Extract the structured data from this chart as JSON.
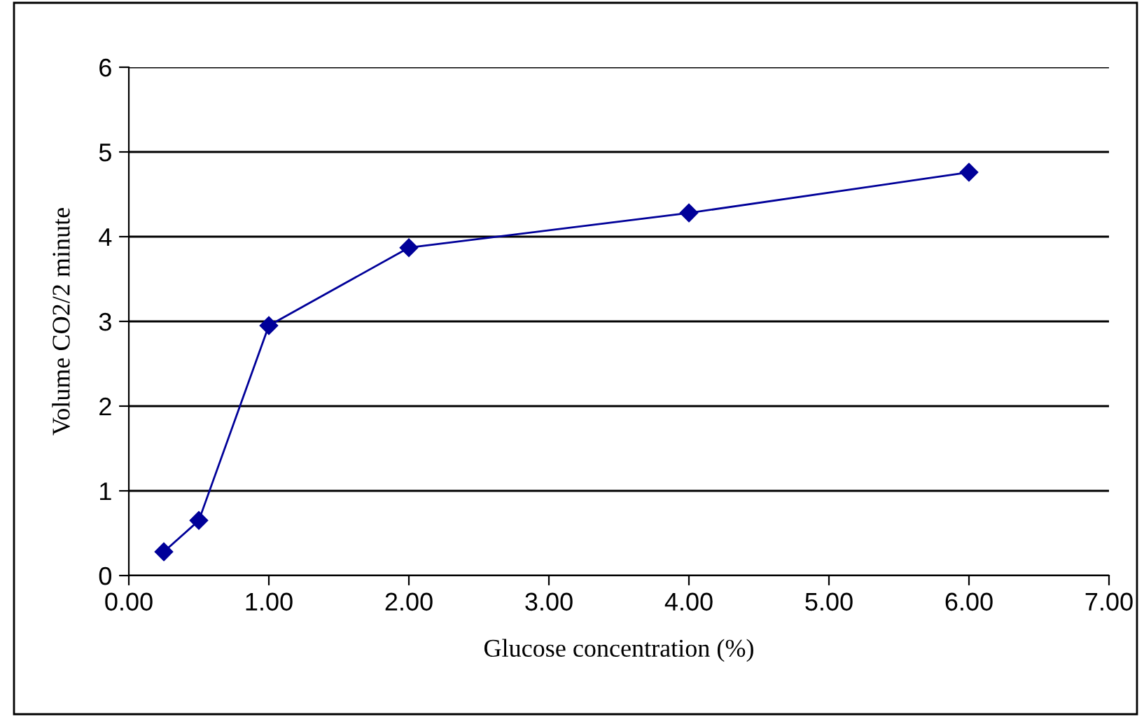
{
  "chart_data": {
    "type": "line",
    "xlabel": "Glucose concentration (%)",
    "ylabel": "Volume CO2/2 minute",
    "x": [
      0.25,
      0.5,
      1.0,
      2.0,
      4.0,
      6.0
    ],
    "series": [
      {
        "color": "#000099",
        "values": [
          0.28,
          0.65,
          2.95,
          3.87,
          4.28,
          4.76
        ]
      }
    ],
    "xlim": [
      0,
      7
    ],
    "xticks": [
      {
        "value": 0,
        "label": "0.00"
      },
      {
        "value": 1,
        "label": "1.00"
      },
      {
        "value": 2,
        "label": "2.00"
      },
      {
        "value": 3,
        "label": "3.00"
      },
      {
        "value": 4,
        "label": "4.00"
      },
      {
        "value": 5,
        "label": "5.00"
      },
      {
        "value": 6,
        "label": "6.00"
      },
      {
        "value": 7,
        "label": "7.00"
      }
    ],
    "ylim": [
      0,
      6
    ],
    "yticks": [
      0,
      1,
      2,
      3,
      4,
      5,
      6
    ],
    "grid": "y",
    "marker": "diamond",
    "line_style": "solid",
    "legend": false
  }
}
